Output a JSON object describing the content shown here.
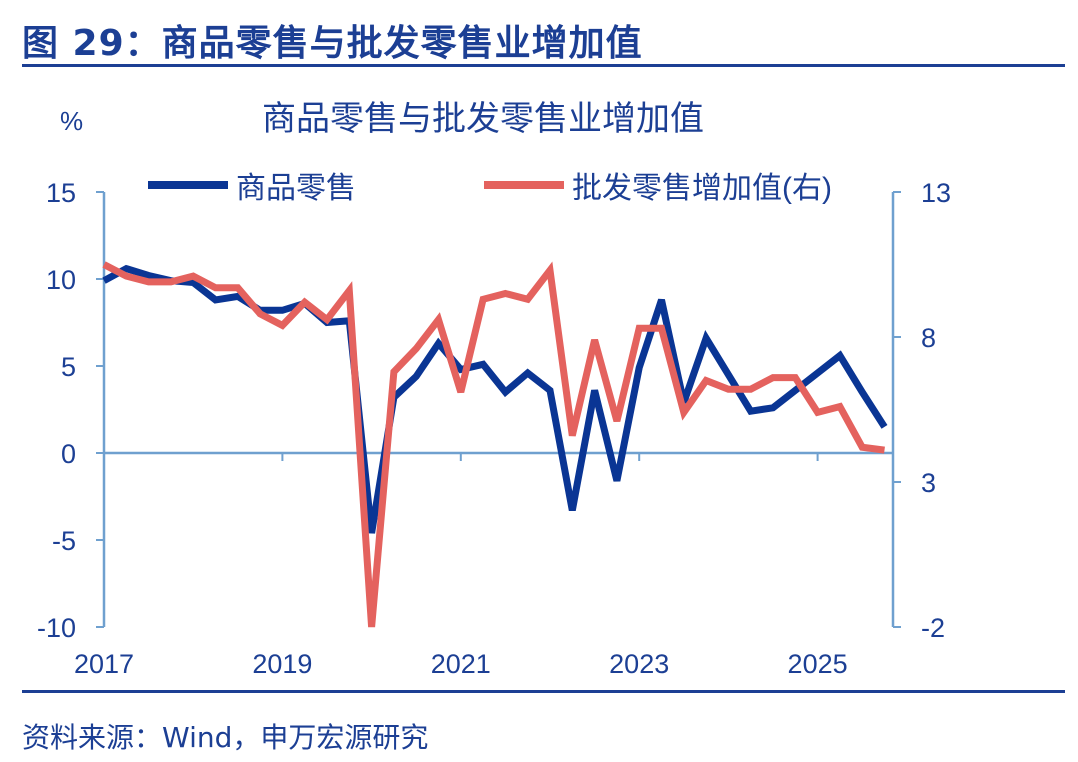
{
  "figure_title": "图 29：商品零售与批发零售业增加值",
  "source": "资料来源：Wind，申万宏源研究",
  "colors": {
    "retail": "#0a3594",
    "wholesale": "#e4625e",
    "axis": "#6fa0cf",
    "title": "#1c3f94"
  },
  "chart_data": {
    "type": "line",
    "title": "商品零售与批发零售业增加值",
    "ylabel": "%",
    "ylim": [
      -10,
      15
    ],
    "y2lim": [
      -2,
      13
    ],
    "yticks": [
      15,
      10,
      5,
      0,
      -5,
      -10
    ],
    "y2ticks": [
      13,
      8,
      3,
      -2
    ],
    "xtick_labels": [
      "2017",
      "2019",
      "2021",
      "2023",
      "2025"
    ],
    "legend_position": "top",
    "grid": false,
    "x": [
      "2017Q1",
      "2017Q2",
      "2017Q3",
      "2017Q4",
      "2018Q1",
      "2018Q2",
      "2018Q3",
      "2018Q4",
      "2019Q1",
      "2019Q2",
      "2019Q3",
      "2019Q4",
      "2020Q1",
      "2020Q2",
      "2020Q3",
      "2020Q4",
      "2021Q1",
      "2021Q2",
      "2021Q3",
      "2021Q4",
      "2022Q1",
      "2022Q2",
      "2022Q3",
      "2022Q4",
      "2023Q1",
      "2023Q2",
      "2023Q3",
      "2023Q4",
      "2024Q1",
      "2024Q2",
      "2024Q3",
      "2024Q4",
      "2025Q1",
      "2025Q2",
      "2025Q3",
      "2025Q4"
    ],
    "series": [
      {
        "name": "商品零售",
        "axis": "left",
        "values": [
          9.9,
          10.6,
          10.2,
          9.9,
          9.8,
          8.8,
          9.0,
          8.2,
          8.2,
          8.6,
          7.5,
          7.6,
          -4.6,
          3.2,
          4.4,
          6.3,
          4.8,
          5.1,
          3.5,
          4.6,
          3.6,
          -3.3,
          3.6,
          -1.6,
          4.9,
          8.8,
          2.9,
          6.6,
          4.5,
          2.4,
          2.6,
          3.6,
          4.6,
          5.6,
          3.5,
          1.5
        ]
      },
      {
        "name": "批发零售增加值(右)",
        "axis": "right",
        "values": [
          10.5,
          10.1,
          9.9,
          9.9,
          10.1,
          9.7,
          9.7,
          8.8,
          8.4,
          9.2,
          8.6,
          9.6,
          -2.0,
          6.8,
          7.6,
          8.6,
          6.1,
          9.3,
          9.5,
          9.3,
          10.3,
          4.6,
          7.9,
          5.1,
          8.3,
          8.3,
          5.4,
          6.5,
          6.2,
          6.2,
          6.6,
          6.6,
          5.4,
          5.6,
          4.2,
          4.1
        ]
      }
    ]
  }
}
